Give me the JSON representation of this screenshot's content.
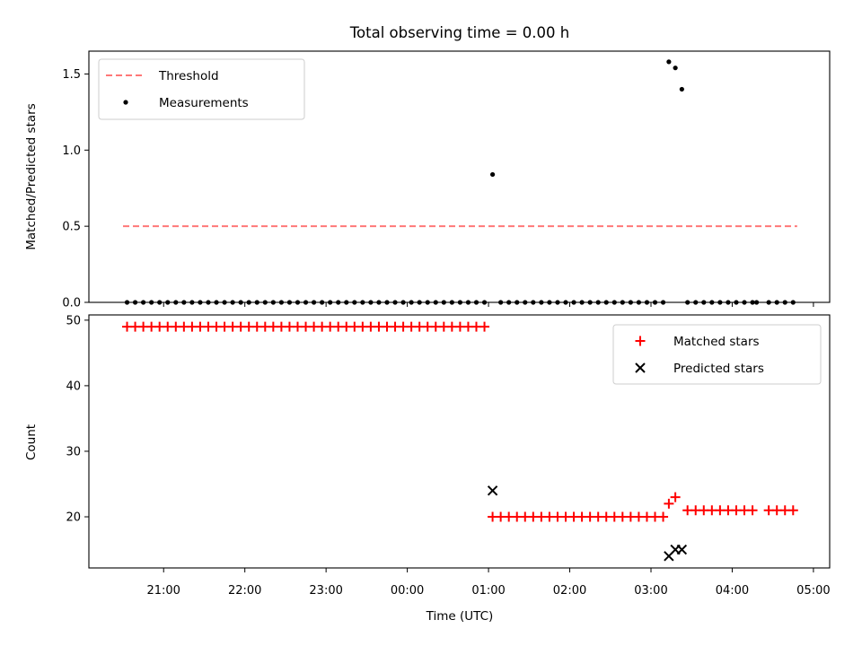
{
  "chart_data": [
    {
      "type": "line+scatter",
      "title": "Total observing time = 0.00 h",
      "xlabel": "",
      "ylabel": "Matched/Predicted stars",
      "ylim": [
        0,
        1.65
      ],
      "yticks": [
        "0.0",
        "0.5",
        "1.0",
        "1.5"
      ],
      "ytick_values": [
        0,
        0.5,
        1.0,
        1.5
      ],
      "legend_position": "upper-left",
      "series": [
        {
          "name": "Threshold",
          "kind": "dashed-line",
          "color": "#ff7777",
          "x": [
            20.5,
            28.8
          ],
          "y": [
            0.5,
            0.5
          ]
        },
        {
          "name": "Measurements",
          "kind": "scatter",
          "color": "#000000",
          "x": [
            20.55,
            20.65,
            20.75,
            20.85,
            20.95,
            21.05,
            21.15,
            21.25,
            21.35,
            21.45,
            21.55,
            21.65,
            21.75,
            21.85,
            21.95,
            22.05,
            22.15,
            22.25,
            22.35,
            22.45,
            22.55,
            22.65,
            22.75,
            22.85,
            22.95,
            23.05,
            23.15,
            23.25,
            23.35,
            23.45,
            23.55,
            23.65,
            23.75,
            23.85,
            23.95,
            24.05,
            24.15,
            24.25,
            24.35,
            24.45,
            24.55,
            24.65,
            24.75,
            24.85,
            24.95,
            25.05,
            25.15,
            25.25,
            25.35,
            25.45,
            25.55,
            25.65,
            25.75,
            25.85,
            25.95,
            26.05,
            26.15,
            26.25,
            26.35,
            26.45,
            26.55,
            26.65,
            26.75,
            26.85,
            26.95,
            27.05,
            27.15,
            27.22,
            27.3,
            27.38,
            27.45,
            27.55,
            27.65,
            27.75,
            27.85,
            27.95,
            28.05,
            28.15,
            28.25,
            28.3,
            28.45,
            28.55,
            28.65,
            28.75
          ],
          "y": [
            0,
            0,
            0,
            0,
            0,
            0,
            0,
            0,
            0,
            0,
            0,
            0,
            0,
            0,
            0,
            0,
            0,
            0,
            0,
            0,
            0,
            0,
            0,
            0,
            0,
            0,
            0,
            0,
            0,
            0,
            0,
            0,
            0,
            0,
            0,
            0,
            0,
            0,
            0,
            0,
            0,
            0,
            0,
            0,
            0,
            0.84,
            0,
            0,
            0,
            0,
            0,
            0,
            0,
            0,
            0,
            0,
            0,
            0,
            0,
            0,
            0,
            0,
            0,
            0,
            0,
            0,
            0,
            1.58,
            1.54,
            1.4,
            0,
            0,
            0,
            0,
            0,
            0,
            0,
            0,
            0,
            0,
            0,
            0,
            0,
            0
          ]
        }
      ]
    },
    {
      "type": "scatter",
      "title": "",
      "xlabel": "Time (UTC)",
      "ylabel": "Count",
      "ylim": [
        12.2,
        50.8
      ],
      "yticks": [
        "20",
        "30",
        "40",
        "50"
      ],
      "ytick_values": [
        20,
        30,
        40,
        50
      ],
      "xlim": [
        20.08,
        29.2
      ],
      "xticks": [
        "21:00",
        "22:00",
        "23:00",
        "00:00",
        "01:00",
        "02:00",
        "03:00",
        "04:00",
        "05:00"
      ],
      "xtick_values": [
        21,
        22,
        23,
        24,
        25,
        26,
        27,
        28,
        29
      ],
      "legend_position": "upper-right",
      "series": [
        {
          "name": "Matched stars",
          "kind": "plus",
          "color": "#ff0000",
          "x": [
            20.55,
            20.65,
            20.75,
            20.85,
            20.95,
            21.05,
            21.15,
            21.25,
            21.35,
            21.45,
            21.55,
            21.65,
            21.75,
            21.85,
            21.95,
            22.05,
            22.15,
            22.25,
            22.35,
            22.45,
            22.55,
            22.65,
            22.75,
            22.85,
            22.95,
            23.05,
            23.15,
            23.25,
            23.35,
            23.45,
            23.55,
            23.65,
            23.75,
            23.85,
            23.95,
            24.05,
            24.15,
            24.25,
            24.35,
            24.45,
            24.55,
            24.65,
            24.75,
            24.85,
            24.95,
            25.05,
            25.15,
            25.25,
            25.35,
            25.45,
            25.55,
            25.65,
            25.75,
            25.85,
            25.95,
            26.05,
            26.15,
            26.25,
            26.35,
            26.45,
            26.55,
            26.65,
            26.75,
            26.85,
            26.95,
            27.05,
            27.15,
            27.22,
            27.3,
            27.45,
            27.55,
            27.65,
            27.75,
            27.85,
            27.95,
            28.05,
            28.15,
            28.25,
            28.45,
            28.55,
            28.65,
            28.75
          ],
          "y": [
            49,
            49,
            49,
            49,
            49,
            49,
            49,
            49,
            49,
            49,
            49,
            49,
            49,
            49,
            49,
            49,
            49,
            49,
            49,
            49,
            49,
            49,
            49,
            49,
            49,
            49,
            49,
            49,
            49,
            49,
            49,
            49,
            49,
            49,
            49,
            49,
            49,
            49,
            49,
            49,
            49,
            49,
            49,
            49,
            49,
            20,
            20,
            20,
            20,
            20,
            20,
            20,
            20,
            20,
            20,
            20,
            20,
            20,
            20,
            20,
            20,
            20,
            20,
            20,
            20,
            20,
            20,
            22,
            23,
            21,
            21,
            21,
            21,
            21,
            21,
            21,
            21,
            21,
            21,
            21,
            21,
            21
          ]
        },
        {
          "name": "Predicted stars",
          "kind": "x",
          "color": "#000000",
          "x": [
            25.05,
            27.22,
            27.3,
            27.38
          ],
          "y": [
            24,
            14,
            15,
            15
          ]
        }
      ]
    }
  ]
}
